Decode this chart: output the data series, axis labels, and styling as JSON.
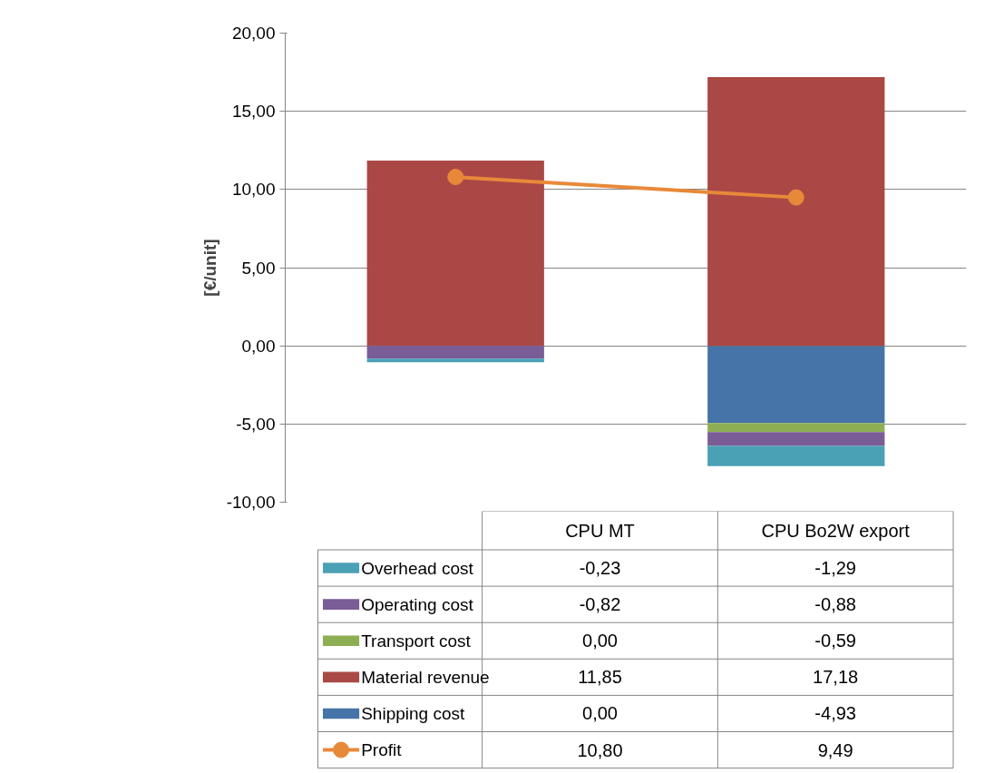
{
  "chart_data": {
    "type": "bar",
    "stacked": true,
    "ylabel": "[€/unit]",
    "categories": [
      "CPU MT",
      "CPU Bo2W export"
    ],
    "series": [
      {
        "name": "Shipping cost",
        "color": "#4674a8",
        "values": [
          0.0,
          -4.93
        ],
        "value_labels": [
          "0,00",
          "-4,93"
        ]
      },
      {
        "name": "Material revenue",
        "color": "#aa4845",
        "values": [
          11.85,
          17.18
        ],
        "value_labels": [
          "11,85",
          "17,18"
        ]
      },
      {
        "name": "Transport cost",
        "color": "#8dae52",
        "values": [
          0.0,
          -0.59
        ],
        "value_labels": [
          "0,00",
          "-0,59"
        ]
      },
      {
        "name": "Operating cost",
        "color": "#7a5c97",
        "values": [
          -0.82,
          -0.88
        ],
        "value_labels": [
          "-0,82",
          "-0,88"
        ]
      },
      {
        "name": "Overhead cost",
        "color": "#4aa0b5",
        "values": [
          -0.23,
          -1.29
        ],
        "value_labels": [
          "-0,23",
          "-1,29"
        ]
      },
      {
        "name": "Profit",
        "type": "line",
        "marker": "circle",
        "color": "#e8893a",
        "values": [
          10.8,
          9.49
        ],
        "value_labels": [
          "10,80",
          "9,49"
        ]
      }
    ],
    "ylim": [
      -10,
      20
    ],
    "yticks": [
      {
        "value": -10,
        "label": "-10,00"
      },
      {
        "value": -5,
        "label": "-5,00"
      },
      {
        "value": 0,
        "label": "0,00"
      },
      {
        "value": 5,
        "label": "5,00"
      },
      {
        "value": 10,
        "label": "10,00"
      },
      {
        "value": 15,
        "label": "15,00"
      },
      {
        "value": 20,
        "label": "20,00"
      }
    ],
    "grid": "y",
    "legend": "bottom"
  }
}
